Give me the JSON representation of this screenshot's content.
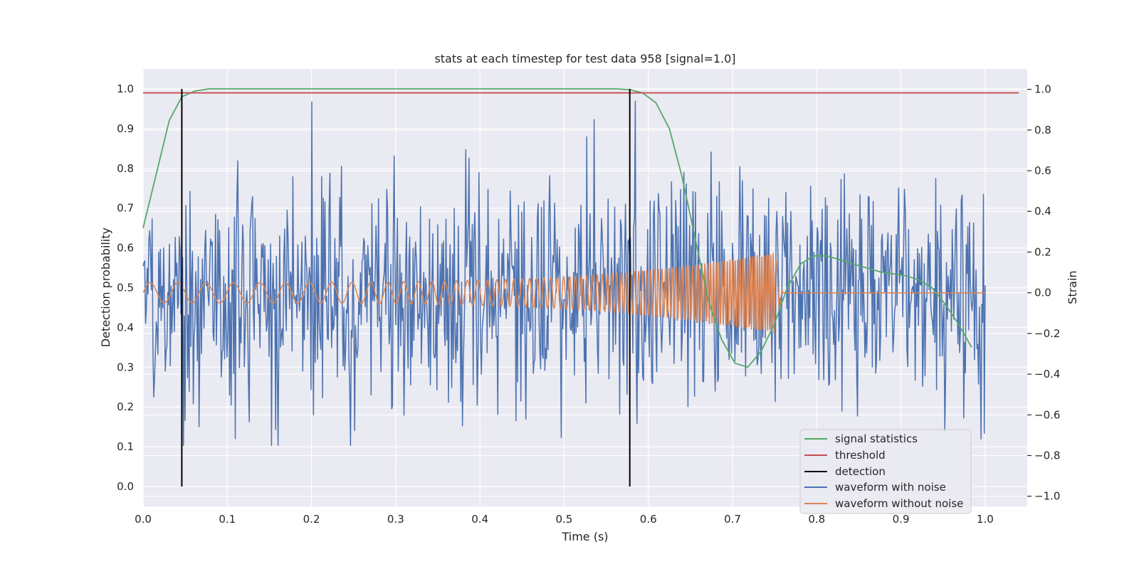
{
  "chart_data": {
    "type": "line",
    "title": "stats at each timestep for test data 958 [signal=1.0]",
    "xlabel": "Time (s)",
    "ylabel": "Detection probability",
    "y2label": "Strain",
    "xlim": [
      0.0,
      1.05
    ],
    "ylim": [
      -0.05,
      1.05
    ],
    "y2lim": [
      -1.05,
      1.1
    ],
    "xticks": [
      0.0,
      0.1,
      0.2,
      0.3,
      0.4,
      0.5,
      0.6,
      0.7,
      0.8,
      0.9,
      1.0
    ],
    "xtick_labels": [
      "0.0",
      "0.1",
      "0.2",
      "0.3",
      "0.4",
      "0.5",
      "0.6",
      "0.7",
      "0.8",
      "0.9",
      "1.0"
    ],
    "yticks": [
      0.0,
      0.1,
      0.2,
      0.3,
      0.4,
      0.5,
      0.6,
      0.7,
      0.8,
      0.9,
      1.0
    ],
    "ytick_labels": [
      "0.0",
      "0.1",
      "0.2",
      "0.3",
      "0.4",
      "0.5",
      "0.6",
      "0.7",
      "0.8",
      "0.9",
      "1.0"
    ],
    "y2ticks": [
      -1.0,
      -0.8,
      -0.6,
      -0.4,
      -0.2,
      0.0,
      0.2,
      0.4,
      0.6,
      0.8,
      1.0
    ],
    "y2tick_labels": [
      "−1.0",
      "−0.8",
      "−0.6",
      "−0.4",
      "−0.2",
      "0.0",
      "0.2",
      "0.4",
      "0.6",
      "0.8",
      "1.0"
    ],
    "grid": true,
    "legend_position": "bottom-right",
    "colors": {
      "plot_bg": "#eaeaf2",
      "grid": "#ffffff",
      "signal_statistics": "#55a868",
      "threshold": "#c44e52",
      "detection": "#000000",
      "waveform_with_noise": "#4c72b0",
      "waveform_without_noise": "#dd8452"
    },
    "series": [
      {
        "name": "signal statistics",
        "axis": "left",
        "x": [
          0.0,
          0.015,
          0.031,
          0.046,
          0.062,
          0.078,
          0.1,
          0.2,
          0.3,
          0.4,
          0.5,
          0.562,
          0.578,
          0.593,
          0.609,
          0.625,
          0.64,
          0.656,
          0.671,
          0.687,
          0.703,
          0.718,
          0.734,
          0.75,
          0.765,
          0.781,
          0.796,
          0.812,
          0.828,
          0.843,
          0.859,
          0.875,
          0.89,
          0.906,
          0.921,
          0.937,
          0.952,
          0.968,
          0.984
        ],
        "y": [
          0.65,
          0.78,
          0.92,
          0.98,
          0.995,
          1.0,
          1.0,
          1.0,
          1.0,
          1.0,
          1.0,
          1.0,
          0.998,
          0.99,
          0.965,
          0.9,
          0.78,
          0.62,
          0.47,
          0.37,
          0.31,
          0.3,
          0.34,
          0.41,
          0.5,
          0.56,
          0.58,
          0.58,
          0.57,
          0.56,
          0.55,
          0.54,
          0.535,
          0.53,
          0.52,
          0.5,
          0.46,
          0.41,
          0.35
        ]
      },
      {
        "name": "threshold",
        "axis": "left",
        "x": [
          0.0,
          1.04
        ],
        "y": [
          0.99,
          0.99
        ]
      },
      {
        "name": "detection",
        "axis": "left",
        "x": [
          0.046,
          0.578
        ],
        "ymin": [
          0.0,
          0.0
        ],
        "ymax": [
          1.0,
          1.0
        ]
      },
      {
        "name": "waveform with noise",
        "axis": "right",
        "x_range": [
          0.0,
          1.0
        ],
        "n_points": 1024,
        "amplitude_range": [
          -0.75,
          1.0
        ]
      },
      {
        "name": "waveform without noise",
        "axis": "right",
        "x_range": [
          0.0,
          1.0
        ],
        "chirp": {
          "t_merger": 0.75,
          "amp_start": 0.05,
          "amp_peak": 0.2,
          "freq_start_hz": 30,
          "freq_peak_hz": 120,
          "ringdown_end": 0.76
        }
      }
    ]
  }
}
